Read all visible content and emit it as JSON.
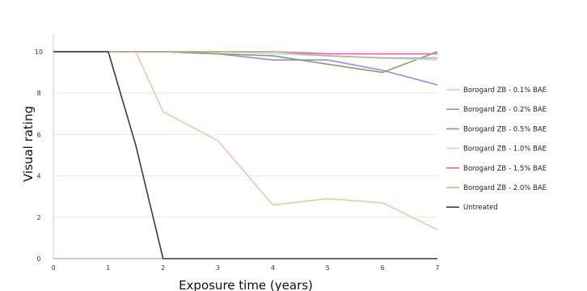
{
  "chart_data": {
    "type": "line",
    "title": "",
    "xlabel": "Exposure time (years)",
    "ylabel": "Visual rating",
    "xlim": [
      0,
      7
    ],
    "ylim": [
      0,
      10
    ],
    "xticks": [
      "0",
      "1",
      "2",
      "3",
      "4",
      "5",
      "6",
      "7"
    ],
    "yticks": [
      "0",
      "2",
      "4",
      "6",
      "8",
      "10"
    ],
    "grid": "horizontal",
    "legend_position": "right",
    "series": [
      {
        "name": "Borogard ZB - 0.1% BAE",
        "color": "#f7c4a4",
        "points": [
          [
            0,
            10
          ],
          [
            1,
            10
          ],
          [
            1.5,
            10
          ],
          [
            2,
            7.1
          ],
          [
            3,
            5.7
          ],
          [
            4,
            2.6
          ],
          [
            5,
            2.9
          ],
          [
            6,
            2.7
          ],
          [
            7,
            1.4
          ]
        ]
      },
      {
        "name": "Borogard ZB - 0.2% BAE",
        "color": "#9b87ec",
        "points": [
          [
            0,
            10
          ],
          [
            1,
            10
          ],
          [
            2,
            10
          ],
          [
            3,
            9.9
          ],
          [
            4,
            9.6
          ],
          [
            5,
            9.6
          ],
          [
            6,
            9.1
          ],
          [
            7,
            8.4
          ]
        ]
      },
      {
        "name": "Borogard ZB - 0.5% BAE",
        "color": "#78a85c",
        "points": [
          [
            0,
            10
          ],
          [
            1,
            10
          ],
          [
            2,
            10
          ],
          [
            3,
            9.9
          ],
          [
            4,
            9.8
          ],
          [
            5,
            9.4
          ],
          [
            6,
            9.0
          ],
          [
            7,
            10
          ]
        ]
      },
      {
        "name": "Borogard ZB - 1.0% BAE",
        "color": "#c6d7ef",
        "points": [
          [
            0,
            10
          ],
          [
            1,
            10
          ],
          [
            2,
            10
          ],
          [
            3,
            10
          ],
          [
            4,
            9.9
          ],
          [
            5,
            9.8
          ],
          [
            6,
            9.7
          ],
          [
            7,
            9.6
          ]
        ]
      },
      {
        "name": "Borogard ZB - 1.5% BAE",
        "color": "#ea62b0",
        "points": [
          [
            0,
            10
          ],
          [
            1,
            10
          ],
          [
            2,
            10
          ],
          [
            3,
            10
          ],
          [
            4,
            10
          ],
          [
            5,
            9.9
          ],
          [
            6,
            9.9
          ],
          [
            7,
            9.9
          ]
        ]
      },
      {
        "name": "Borogard ZB - 2.0% BAE",
        "color": "#b8b38f",
        "points": [
          [
            0,
            10
          ],
          [
            1,
            10
          ],
          [
            2,
            10
          ],
          [
            3,
            10
          ],
          [
            4,
            10
          ],
          [
            5,
            9.8
          ],
          [
            6,
            9.7
          ],
          [
            7,
            9.7
          ]
        ]
      },
      {
        "name": "Untreated",
        "color": "#3a3a3a",
        "points": [
          [
            0,
            10
          ],
          [
            1,
            10
          ],
          [
            1.5,
            5.5
          ],
          [
            2,
            0
          ],
          [
            3,
            0
          ],
          [
            4,
            0
          ],
          [
            5,
            0
          ],
          [
            6,
            0
          ],
          [
            7,
            0
          ]
        ]
      }
    ]
  }
}
